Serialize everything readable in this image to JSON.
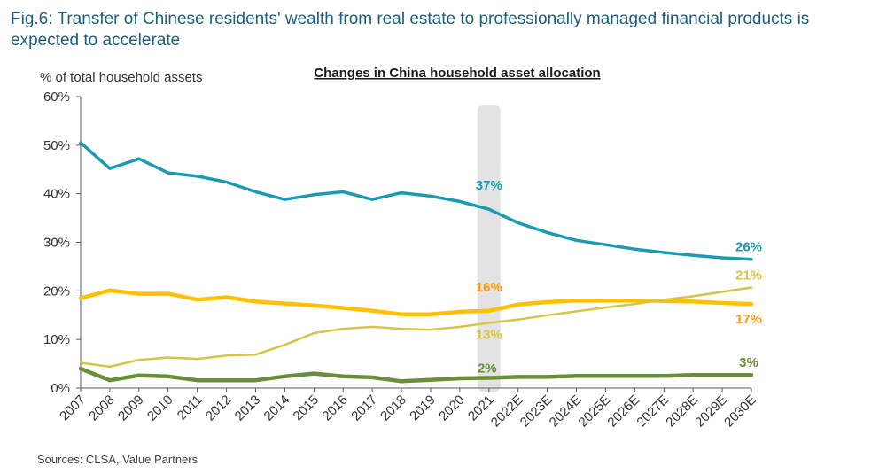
{
  "figure": {
    "title": "Fig.6: Transfer of Chinese residents' wealth from real estate to professionally managed financial products is expected to accelerate",
    "source": "Sources: CLSA, Value Partners"
  },
  "chart_data": {
    "type": "line",
    "title": "Changes in China household asset allocation",
    "ylabel": "% of total household assets",
    "xlabel": "",
    "ylim": [
      0,
      60
    ],
    "yticks": [
      "0%",
      "10%",
      "20%",
      "30%",
      "40%",
      "50%",
      "60%"
    ],
    "categories": [
      "2007",
      "2008",
      "2009",
      "2010",
      "2011",
      "2012",
      "2013",
      "2014",
      "2015",
      "2016",
      "2017",
      "2018",
      "2019",
      "2020",
      "2021",
      "2022E",
      "2023E",
      "2024E",
      "2025E",
      "2026E",
      "2027E",
      "2028E",
      "2029E",
      "2030E"
    ],
    "highlight_category": "2021",
    "grid": false,
    "series": [
      {
        "color": "#1a9bb0",
        "width": 3.5,
        "values": [
          50.5,
          45.2,
          47.2,
          44.3,
          43.6,
          42.4,
          40.4,
          38.8,
          39.8,
          40.4,
          38.8,
          40.2,
          39.5,
          38.4,
          36.8,
          34.0,
          32.0,
          30.4,
          29.5,
          28.6,
          27.9,
          27.3,
          26.8,
          26.5
        ],
        "labels": [
          {
            "index": 14,
            "text": "37%"
          },
          {
            "index": 23,
            "text": "26%"
          }
        ]
      },
      {
        "color": "#ffc000",
        "width": 4.5,
        "values": [
          18.5,
          20.1,
          19.4,
          19.4,
          18.2,
          18.7,
          17.8,
          17.4,
          17.0,
          16.5,
          15.9,
          15.2,
          15.2,
          15.7,
          15.9,
          17.2,
          17.7,
          18.0,
          18.0,
          18.0,
          17.9,
          17.8,
          17.5,
          17.3
        ],
        "labels": [
          {
            "index": 14,
            "text": "16%",
            "color": "#f39c12"
          },
          {
            "index": 23,
            "text": "17%",
            "color": "#f39c12"
          }
        ]
      },
      {
        "color": "#d6c446",
        "width": 2.5,
        "values": [
          5.2,
          4.4,
          5.8,
          6.3,
          6.0,
          6.7,
          6.9,
          8.9,
          11.3,
          12.2,
          12.6,
          12.2,
          12.0,
          12.6,
          13.4,
          14.1,
          15.0,
          15.8,
          16.6,
          17.3,
          18.2,
          18.9,
          19.8,
          20.7
        ],
        "labels": [
          {
            "index": 14,
            "text": "13%"
          },
          {
            "index": 23,
            "text": "21%"
          }
        ]
      },
      {
        "color": "#6a8f3b",
        "width": 4.5,
        "values": [
          4.0,
          1.6,
          2.6,
          2.4,
          1.6,
          1.6,
          1.6,
          2.4,
          3.0,
          2.4,
          2.2,
          1.4,
          1.7,
          2.0,
          2.1,
          2.3,
          2.3,
          2.5,
          2.5,
          2.5,
          2.5,
          2.7,
          2.7,
          2.7
        ],
        "labels": [
          {
            "index": 14,
            "text": "2%"
          },
          {
            "index": 23,
            "text": "3%"
          }
        ]
      }
    ]
  }
}
